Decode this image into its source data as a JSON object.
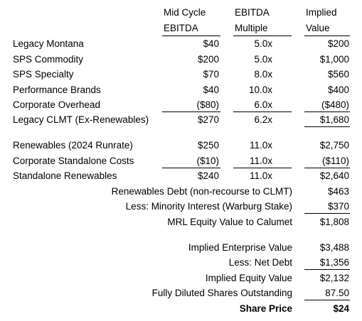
{
  "headers": {
    "c1": [
      "Mid Cycle",
      "EBITDA"
    ],
    "c2": [
      "EBITDA",
      "Multiple"
    ],
    "c3": [
      "Implied",
      "Value"
    ]
  },
  "segments": [
    {
      "label": "Legacy Montana",
      "ebitda": "$40",
      "multiple": "5.0x",
      "value": "$200"
    },
    {
      "label": "SPS Commodity",
      "ebitda": "$200",
      "multiple": "5.0x",
      "value": "$1,000"
    },
    {
      "label": "SPS Specialty",
      "ebitda": "$70",
      "multiple": "8.0x",
      "value": "$560"
    },
    {
      "label": "Performance Brands",
      "ebitda": "$40",
      "multiple": "10.0x",
      "value": "$400"
    },
    {
      "label": "Corporate Overhead",
      "ebitda": "($80)",
      "multiple": "6.0x",
      "value": "($480)"
    },
    {
      "label": "Legacy CLMT (Ex-Renewables)",
      "ebitda": "$270",
      "multiple": "6.2x",
      "value": "$1,680"
    }
  ],
  "renewables": [
    {
      "label": "Renewables (2024 Runrate)",
      "ebitda": "$250",
      "multiple": "11.0x",
      "value": "$2,750"
    },
    {
      "label": "Corporate Standalone Costs",
      "ebitda": "($10)",
      "multiple": "11.0x",
      "value": "($110)"
    },
    {
      "label": "Standalone Renewables",
      "ebitda": "$240",
      "multiple": "11.0x",
      "value": "$2,640"
    }
  ],
  "mrl": [
    {
      "label": "Renewables Debt (non-recourse to CLMT)",
      "value": "$463"
    },
    {
      "label": "Less: Minority Interest (Warburg Stake)",
      "value": "$370"
    },
    {
      "label": "MRL Equity Value to Calumet",
      "value": "$1,808"
    }
  ],
  "summary": [
    {
      "label": "Implied Enterprise Value",
      "value": "$3,488"
    },
    {
      "label": "Less: Net Debt",
      "value": "$1,356"
    },
    {
      "label": "Implied Equity Value",
      "value": "$2,132"
    },
    {
      "label": "Fully Diluted Shares Outstanding",
      "value": "87.50"
    },
    {
      "label": "Share Price",
      "value": "$24"
    }
  ]
}
